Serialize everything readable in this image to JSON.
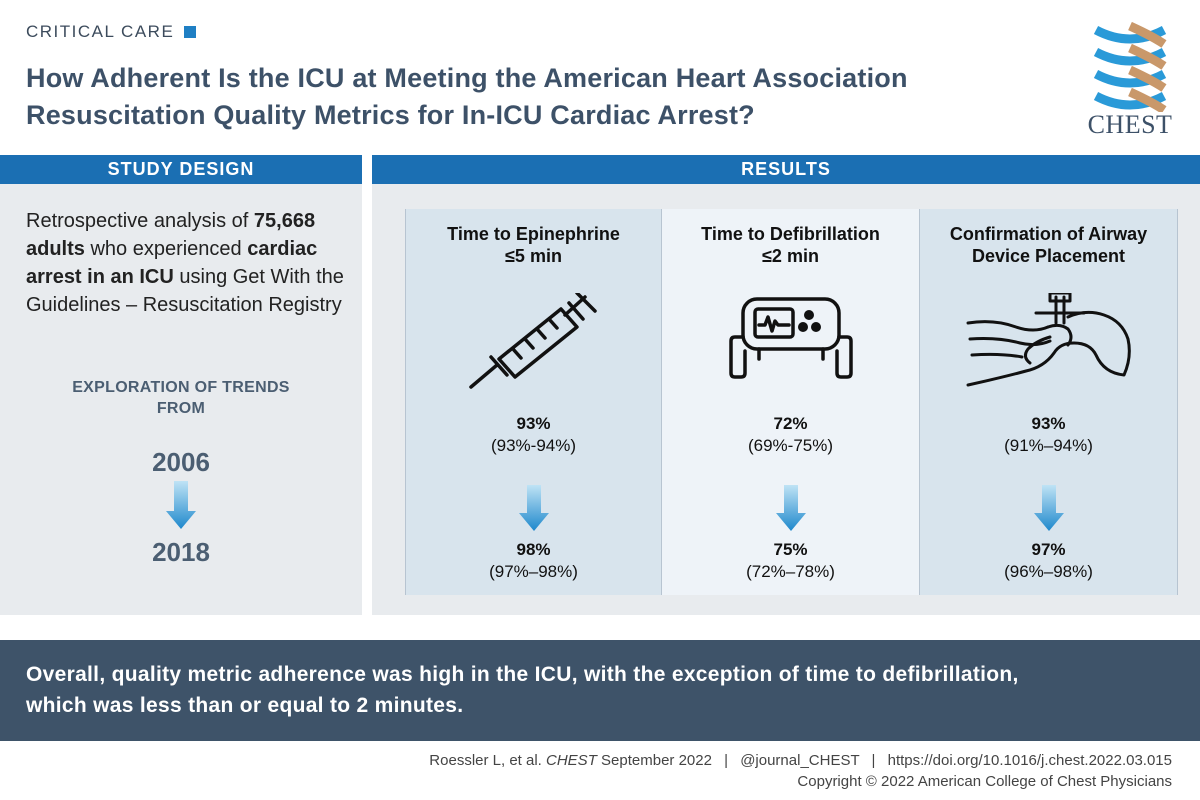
{
  "header": {
    "section": "CRITICAL CARE",
    "title_line1": "How Adherent Is the ICU at Meeting the American Heart Association",
    "title_line2": "Resuscitation Quality Metrics for In-ICU Cardiac Arrest?",
    "logo_text": "CHEST",
    "accent_color": "#1f7fc4"
  },
  "study_design": {
    "heading": "STUDY DESIGN",
    "text_1": "Retrospective analysis of ",
    "bold_1": "75,668 adults",
    "text_2": " who experienced ",
    "bold_2": "cardiac arrest in an ICU",
    "text_3": " using Get With the Guidelines – Resuscitation Registry",
    "trends_line1": "EXPLORATION OF TRENDS",
    "trends_line2": "FROM",
    "year_start": "2006",
    "year_end": "2018"
  },
  "results": {
    "heading": "RESULTS",
    "metrics": [
      {
        "title_line1": "Time to Epinephrine",
        "title_line2": "≤5 min",
        "icon": "syringe-icon",
        "start_value": "93%",
        "start_ci": "(93%-94%)",
        "end_value": "98%",
        "end_ci": "(97%–98%)"
      },
      {
        "title_line1": "Time to Defibrillation",
        "title_line2": "≤2 min",
        "icon": "defibrillator-icon",
        "start_value": "72%",
        "start_ci": "(69%-75%)",
        "end_value": "75%",
        "end_ci": "(72%–78%)"
      },
      {
        "title_line1": "Confirmation of Airway",
        "title_line2": "Device Placement",
        "icon": "airway-device-icon",
        "start_value": "93%",
        "start_ci": "(91%–94%)",
        "end_value": "97%",
        "end_ci": "(96%–98%)"
      }
    ]
  },
  "conclusion": {
    "line1": "Overall, quality metric adherence was high in the ICU, with the exception of time to defibrillation,",
    "line2": "which was less than or equal to 2 minutes."
  },
  "footer": {
    "citation_prefix": "Roessler L, et al. ",
    "journal": "CHEST",
    "citation_suffix": " September 2022",
    "handle": "@journal_CHEST",
    "doi": "https://doi.org/10.1016/j.chest.2022.03.015",
    "copyright": "Copyright © 2022 American College of Chest Physicians"
  }
}
